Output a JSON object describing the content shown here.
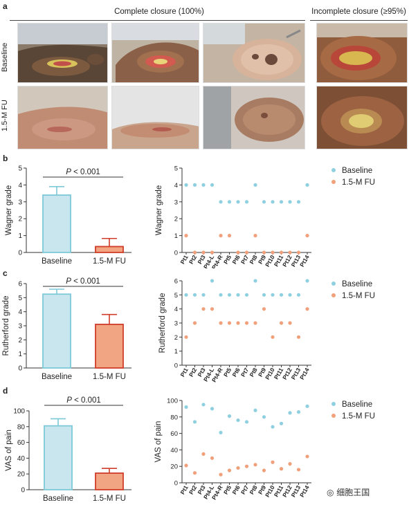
{
  "panel_a": {
    "letter": "a",
    "header_complete": "Complete closure (100%)",
    "header_incomplete": "Incomplete closure (≥95%)",
    "row_baseline": "Baseline",
    "row_fu": "1.5-M FU"
  },
  "panel_letters": {
    "b": "b",
    "c": "c",
    "d": "d"
  },
  "pvalue": {
    "italic": "P",
    "rest": " < 0.001"
  },
  "colors": {
    "baseline_fill": "#c9e6ee",
    "baseline_edge": "#7ec9d8",
    "fu_fill": "#f2a582",
    "fu_edge": "#cf3c2a",
    "baseline_dot": "#8fd0e0",
    "fu_dot": "#f0a07a"
  },
  "legend": {
    "baseline": "Baseline",
    "fu": "1.5-M FU"
  },
  "watermark": "细胞王国",
  "chart_data": [
    {
      "type": "bar",
      "panel": "b",
      "categories": [
        "Baseline",
        "1.5-M FU"
      ],
      "values": [
        3.4,
        0.35
      ],
      "errors": [
        0.5,
        0.48
      ],
      "ylabel": "Wagner grade",
      "ylim": [
        0,
        5
      ],
      "yticks": [
        "0",
        "1",
        "2",
        "3",
        "4",
        "5"
      ],
      "annotation": "P < 0.001"
    },
    {
      "type": "scatter",
      "panel": "b",
      "categories": [
        "Pt1",
        "Pt2",
        "Pt3",
        "Pt4-L",
        "Pt4-R",
        "Pt5",
        "Pt6",
        "Pt7",
        "Pt8",
        "Pt9",
        "Pt10",
        "Pt11",
        "Pt12",
        "Pt13",
        "Pt14"
      ],
      "series": [
        {
          "name": "Baseline",
          "values": [
            4,
            4,
            4,
            4,
            3,
            3,
            3,
            3,
            4,
            3,
            3,
            3,
            3,
            3,
            4
          ]
        },
        {
          "name": "1.5-M FU",
          "values": [
            1,
            0,
            0,
            0,
            1,
            1,
            0,
            0,
            1,
            0,
            0,
            0,
            0,
            0,
            1
          ]
        }
      ],
      "ylabel": "Wagner grade",
      "ylim": [
        0,
        5
      ],
      "yticks": [
        "0",
        "1",
        "2",
        "3",
        "4",
        "5"
      ],
      "grid": false,
      "legend": "right"
    },
    {
      "type": "bar",
      "panel": "c",
      "categories": [
        "Baseline",
        "1.5-M FU"
      ],
      "values": [
        5.25,
        3.1
      ],
      "errors": [
        0.35,
        0.7
      ],
      "ylabel": "Rutherford grade",
      "ylim": [
        0,
        6
      ],
      "yticks": [
        "0",
        "1",
        "2",
        "3",
        "4",
        "5",
        "6"
      ],
      "annotation": "P < 0.001"
    },
    {
      "type": "scatter",
      "panel": "c",
      "categories": [
        "Pt1",
        "Pt2",
        "Pt3",
        "Pt4-L",
        "Pt4-R",
        "Pt5",
        "Pt6",
        "Pt7",
        "Pt8",
        "Pt9",
        "Pt10",
        "Pt11",
        "Pt12",
        "Pt13",
        "Pt14"
      ],
      "series": [
        {
          "name": "Baseline",
          "values": [
            5,
            5,
            5,
            6,
            5,
            5,
            5,
            5,
            6,
            5,
            5,
            5,
            5,
            5,
            6
          ]
        },
        {
          "name": "1.5-M FU",
          "values": [
            2,
            3,
            4,
            4,
            3,
            3,
            3,
            3,
            3,
            4,
            2,
            3,
            3,
            2,
            4
          ]
        }
      ],
      "ylabel": "Rutherford grade",
      "ylim": [
        0,
        6
      ],
      "yticks": [
        "0",
        "1",
        "2",
        "3",
        "4",
        "5",
        "6"
      ],
      "grid": false,
      "legend": "right"
    },
    {
      "type": "bar",
      "panel": "d",
      "categories": [
        "Baseline",
        "1.5-M FU"
      ],
      "values": [
        81,
        21
      ],
      "errors": [
        9,
        6
      ],
      "ylabel": "VAS of pain",
      "ylim": [
        0,
        100
      ],
      "yticks": [
        "0",
        "20",
        "40",
        "60",
        "80",
        "100"
      ],
      "annotation": "P < 0.001"
    },
    {
      "type": "scatter",
      "panel": "d",
      "categories": [
        "Pt1",
        "Pt2",
        "Pt3",
        "Pt4-L",
        "Pt4-R",
        "Pt5",
        "Pt6",
        "Pt7",
        "Pt8",
        "Pt9",
        "Pt10",
        "Pt11",
        "Pt12",
        "Pt13",
        "Pt14"
      ],
      "series": [
        {
          "name": "Baseline",
          "values": [
            92,
            74,
            95,
            90,
            61,
            81,
            76,
            74,
            88,
            80,
            68,
            72,
            85,
            86,
            93
          ]
        },
        {
          "name": "1.5-M FU",
          "values": [
            21,
            12,
            35,
            30,
            10,
            15,
            18,
            20,
            22,
            15,
            25,
            17,
            23,
            16,
            32
          ]
        }
      ],
      "ylabel": "VAS of pain",
      "ylim": [
        0,
        100
      ],
      "yticks": [
        "0",
        "20",
        "40",
        "60",
        "80",
        "100"
      ],
      "grid": false,
      "legend": "right"
    }
  ]
}
